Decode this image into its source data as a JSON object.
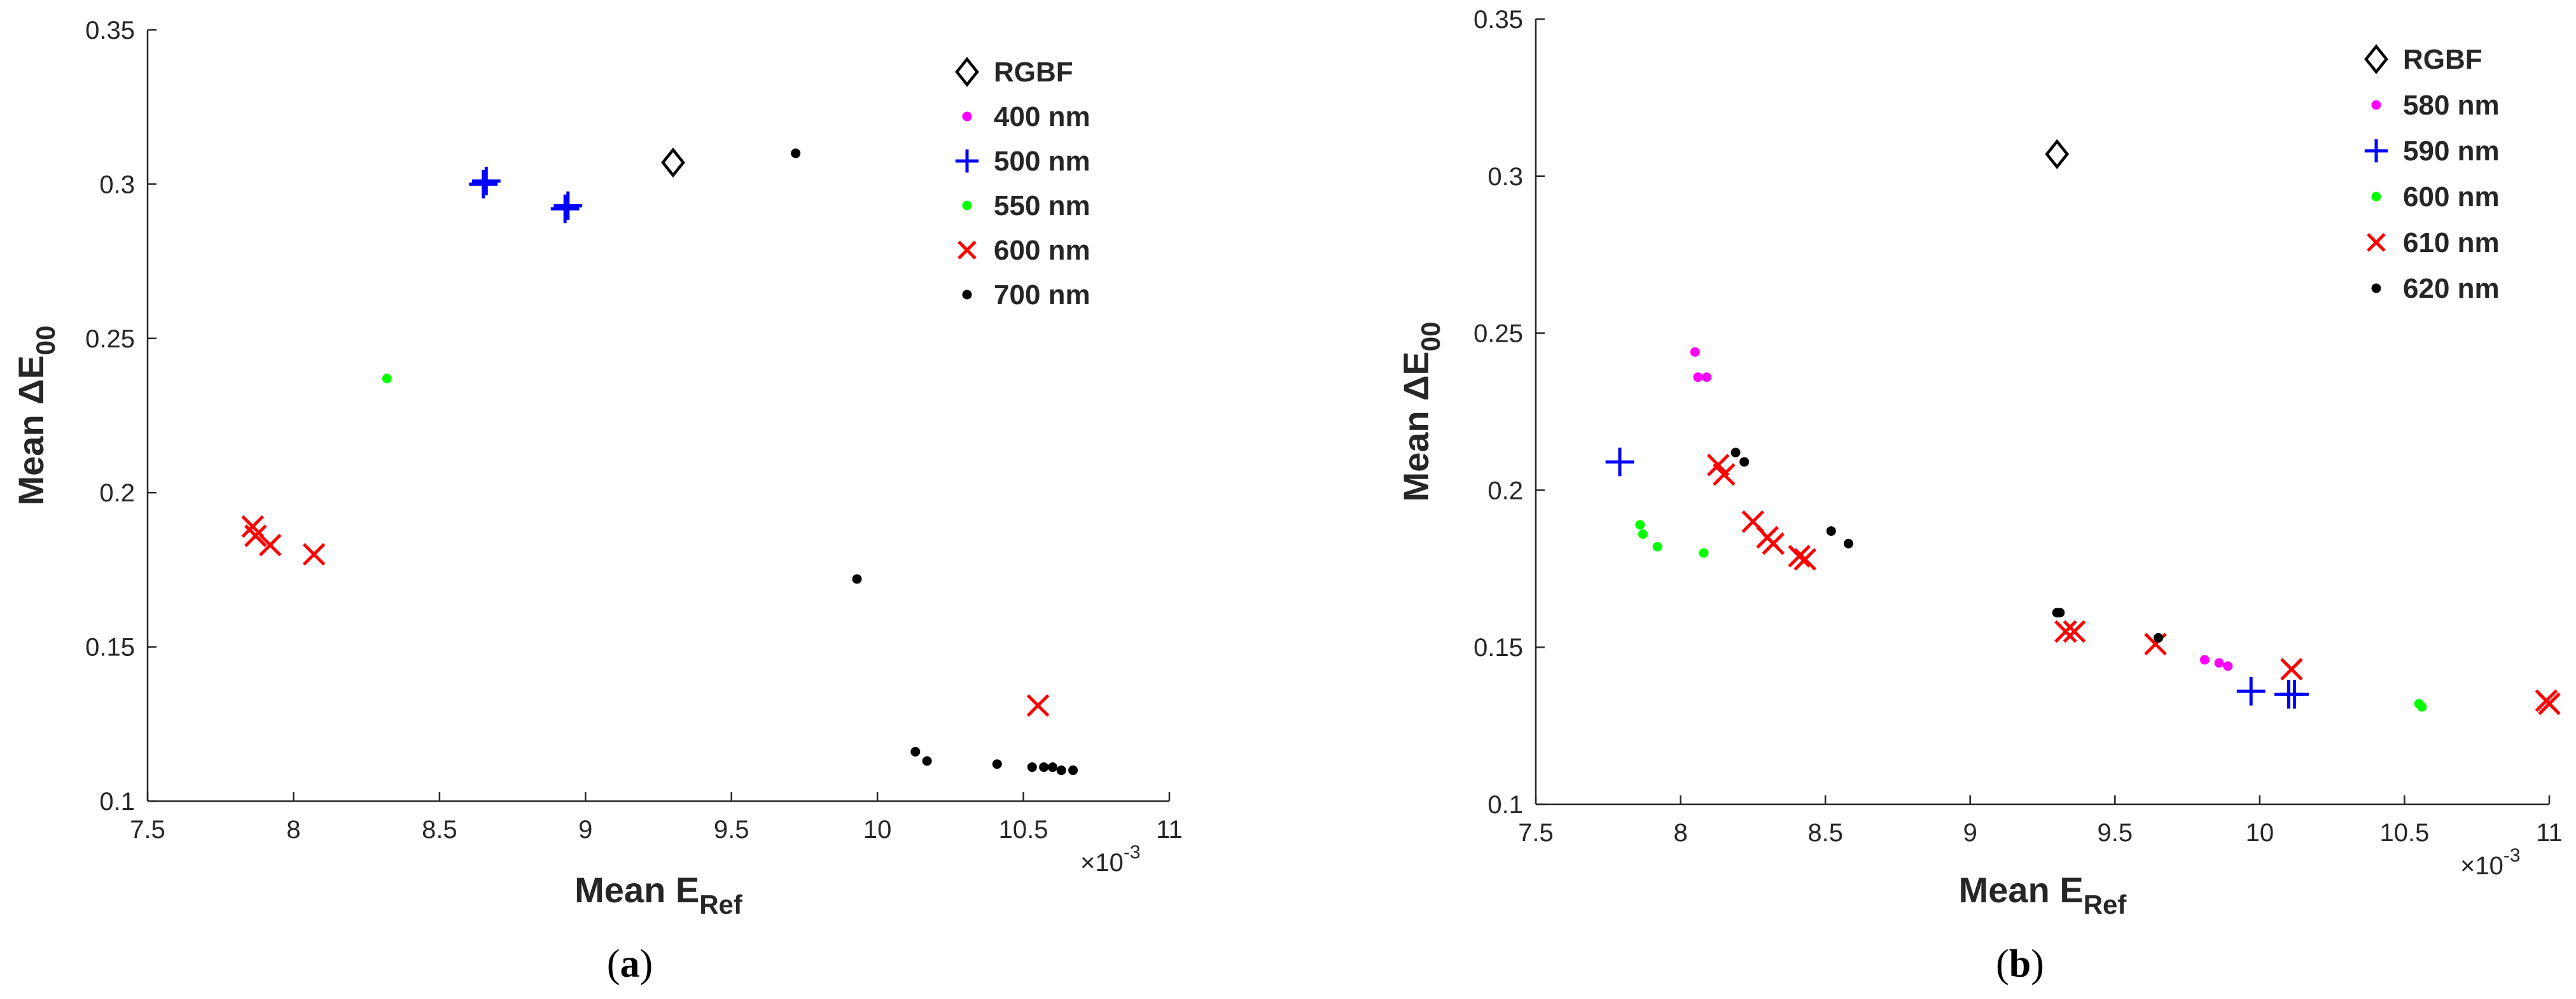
{
  "chart_data": [
    {
      "type": "scatter",
      "panel_label": "a",
      "xlabel": "Mean E",
      "xlabel_sub": "Ref",
      "ylabel": "Mean ΔE",
      "ylabel_sub": "00",
      "x_exponent_prefix": "×10",
      "x_exponent_power": "-3",
      "xlim": [
        7.5,
        11
      ],
      "ylim": [
        0.1,
        0.35
      ],
      "xticks": [
        7.5,
        8,
        8.5,
        9,
        9.5,
        10,
        10.5,
        11
      ],
      "yticks": [
        0.1,
        0.15,
        0.2,
        0.25,
        0.3,
        0.35
      ],
      "xtick_labels": [
        "7.5",
        "8",
        "8.5",
        "9",
        "9.5",
        "10",
        "10.5",
        "11"
      ],
      "ytick_labels": [
        "0.1",
        "0.15",
        "0.2",
        "0.25",
        "0.3",
        "0.35"
      ],
      "legend_position": "top-right",
      "series": [
        {
          "name": "RGBF",
          "marker": "diamond",
          "color": "#000000",
          "points": [
            [
              9.3,
              0.307
            ]
          ]
        },
        {
          "name": "400 nm",
          "marker": "dot",
          "color": "#ff00ff",
          "points": []
        },
        {
          "name": "500 nm",
          "marker": "plus",
          "color": "#0000ff",
          "points": [
            [
              8.65,
              0.3
            ],
            [
              8.66,
              0.301
            ],
            [
              8.93,
              0.292
            ],
            [
              8.94,
              0.293
            ]
          ]
        },
        {
          "name": "550 nm",
          "marker": "dot",
          "color": "#00ff00",
          "points": [
            [
              8.32,
              0.237
            ]
          ]
        },
        {
          "name": "600 nm",
          "marker": "cross",
          "color": "#ff0000",
          "points": [
            [
              7.86,
              0.189
            ],
            [
              7.87,
              0.186
            ],
            [
              7.92,
              0.183
            ],
            [
              8.07,
              0.18
            ],
            [
              10.55,
              0.131
            ]
          ]
        },
        {
          "name": "700 nm",
          "marker": "dot",
          "color": "#000000",
          "points": [
            [
              9.72,
              0.31
            ],
            [
              9.93,
              0.172
            ],
            [
              10.13,
              0.116
            ],
            [
              10.17,
              0.113
            ],
            [
              10.41,
              0.112
            ],
            [
              10.53,
              0.111
            ],
            [
              10.57,
              0.111
            ],
            [
              10.6,
              0.111
            ],
            [
              10.63,
              0.11
            ],
            [
              10.67,
              0.11
            ]
          ]
        }
      ]
    },
    {
      "type": "scatter",
      "panel_label": "b",
      "xlabel": "Mean E",
      "xlabel_sub": "Ref",
      "ylabel": "Mean ΔE",
      "ylabel_sub": "00",
      "x_exponent_prefix": "×10",
      "x_exponent_power": "-3",
      "xlim": [
        7.5,
        11
      ],
      "ylim": [
        0.1,
        0.35
      ],
      "xticks": [
        7.5,
        8,
        8.5,
        9,
        9.5,
        10,
        10.5,
        11
      ],
      "yticks": [
        0.1,
        0.15,
        0.2,
        0.25,
        0.3,
        0.35
      ],
      "xtick_labels": [
        "7.5",
        "8",
        "8.5",
        "9",
        "9.5",
        "10",
        "10.5",
        "11"
      ],
      "ytick_labels": [
        "0.1",
        "0.15",
        "0.2",
        "0.25",
        "0.3",
        "0.35"
      ],
      "legend_position": "top-right",
      "series": [
        {
          "name": "RGBF",
          "marker": "diamond",
          "color": "#000000",
          "points": [
            [
              9.3,
              0.307
            ]
          ]
        },
        {
          "name": "580 nm",
          "marker": "dot",
          "color": "#ff00ff",
          "points": [
            [
              8.05,
              0.244
            ],
            [
              8.06,
              0.236
            ],
            [
              8.09,
              0.236
            ],
            [
              9.81,
              0.146
            ],
            [
              9.86,
              0.145
            ],
            [
              9.89,
              0.144
            ]
          ]
        },
        {
          "name": "590 nm",
          "marker": "plus",
          "color": "#0000ff",
          "points": [
            [
              7.79,
              0.209
            ],
            [
              9.97,
              0.136
            ],
            [
              10.1,
              0.135
            ],
            [
              10.12,
              0.135
            ]
          ]
        },
        {
          "name": "600 nm",
          "marker": "dot",
          "color": "#00ff00",
          "points": [
            [
              7.86,
              0.189
            ],
            [
              7.87,
              0.186
            ],
            [
              7.92,
              0.182
            ],
            [
              8.08,
              0.18
            ],
            [
              10.55,
              0.132
            ],
            [
              10.56,
              0.131
            ]
          ]
        },
        {
          "name": "610 nm",
          "marker": "cross",
          "color": "#ff0000",
          "points": [
            [
              8.13,
              0.208
            ],
            [
              8.15,
              0.205
            ],
            [
              8.25,
              0.19
            ],
            [
              8.3,
              0.185
            ],
            [
              8.32,
              0.183
            ],
            [
              8.41,
              0.179
            ],
            [
              8.43,
              0.178
            ],
            [
              9.33,
              0.155
            ],
            [
              9.36,
              0.155
            ],
            [
              9.64,
              0.151
            ],
            [
              10.11,
              0.143
            ],
            [
              10.99,
              0.133
            ],
            [
              11.0,
              0.132
            ]
          ]
        },
        {
          "name": "620 nm",
          "marker": "dot",
          "color": "#000000",
          "points": [
            [
              8.19,
              0.212
            ],
            [
              8.22,
              0.209
            ],
            [
              8.52,
              0.187
            ],
            [
              8.58,
              0.183
            ],
            [
              9.3,
              0.161
            ],
            [
              9.31,
              0.161
            ],
            [
              9.65,
              0.153
            ]
          ]
        }
      ]
    }
  ]
}
